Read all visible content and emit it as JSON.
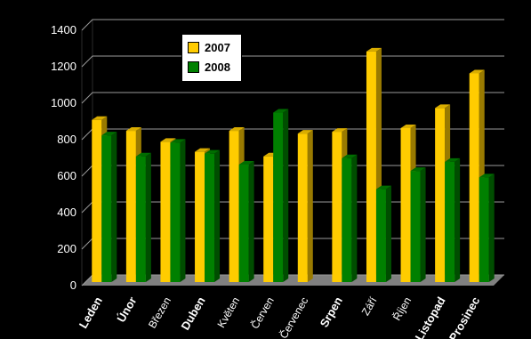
{
  "chart_data": {
    "type": "bar",
    "categories": [
      "Leden",
      "Únor",
      "Březen",
      "Duben",
      "Květen",
      "Červen",
      "Červenec",
      "Srpen",
      "Září",
      "Říjen",
      "Listopad",
      "Prosinec"
    ],
    "series": [
      {
        "name": "2007",
        "color": "#FFCC00",
        "values": [
          850,
          790,
          730,
          675,
          790,
          650,
          775,
          785,
          1225,
          805,
          915,
          1105
        ]
      },
      {
        "name": "2008",
        "color": "#008000",
        "values": [
          765,
          650,
          725,
          665,
          605,
          890,
          null,
          640,
          470,
          570,
          620,
          535
        ]
      }
    ],
    "ylim": [
      0,
      1400
    ],
    "yticks": [
      0,
      200,
      400,
      600,
      800,
      1000,
      1200,
      1400
    ],
    "bold_categories": [
      "Leden",
      "Únor",
      "Duben",
      "Srpen",
      "Listopad",
      "Prosinec"
    ],
    "grid": true,
    "legend_position": "top-left"
  }
}
